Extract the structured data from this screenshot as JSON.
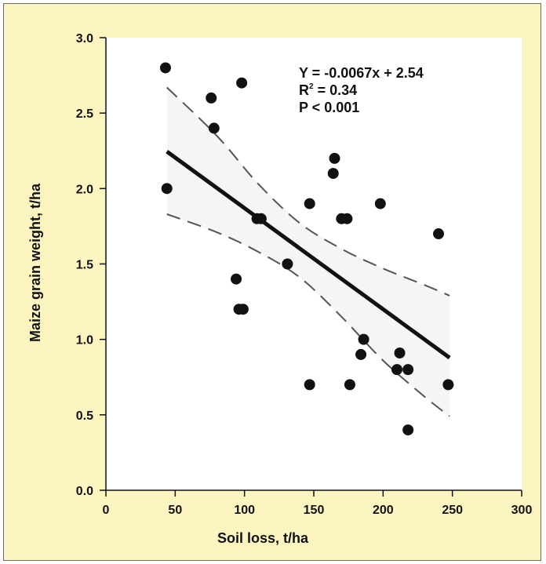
{
  "colors": {
    "background": "#fdf5c0",
    "plot_area": "#ffffff",
    "confidence_band": "#f5f5f5",
    "marker": "#111111",
    "line": "#111111"
  },
  "chart_data": {
    "type": "scatter",
    "title": "",
    "xlabel": "Soil loss, t/ha",
    "ylabel": "Maize grain weight, t/ha",
    "xlim": [
      0,
      300
    ],
    "ylim": [
      0.0,
      3.0
    ],
    "xticks": [
      0,
      50,
      100,
      150,
      200,
      250,
      300
    ],
    "yticks": [
      0.0,
      0.5,
      1.0,
      1.5,
      2.0,
      2.5,
      3.0
    ],
    "xtick_labels": [
      "0",
      "50",
      "100",
      "150",
      "200",
      "250",
      "300"
    ],
    "ytick_labels": [
      "0.0",
      "0.5",
      "1.0",
      "1.5",
      "2.0",
      "2.5",
      "3.0"
    ],
    "grid": false,
    "points": [
      {
        "x": 43,
        "y": 2.8
      },
      {
        "x": 98,
        "y": 2.7
      },
      {
        "x": 76,
        "y": 2.6
      },
      {
        "x": 78,
        "y": 2.4
      },
      {
        "x": 44,
        "y": 2.0
      },
      {
        "x": 165,
        "y": 2.2
      },
      {
        "x": 164,
        "y": 2.1
      },
      {
        "x": 147,
        "y": 1.9
      },
      {
        "x": 198,
        "y": 1.9
      },
      {
        "x": 109,
        "y": 1.8
      },
      {
        "x": 112,
        "y": 1.8
      },
      {
        "x": 170,
        "y": 1.8
      },
      {
        "x": 174,
        "y": 1.8
      },
      {
        "x": 240,
        "y": 1.7
      },
      {
        "x": 131,
        "y": 1.5
      },
      {
        "x": 94,
        "y": 1.4
      },
      {
        "x": 96,
        "y": 1.2
      },
      {
        "x": 99,
        "y": 1.2
      },
      {
        "x": 186,
        "y": 1.0
      },
      {
        "x": 184,
        "y": 0.9
      },
      {
        "x": 212,
        "y": 0.91
      },
      {
        "x": 210,
        "y": 0.8
      },
      {
        "x": 218,
        "y": 0.8
      },
      {
        "x": 147,
        "y": 0.7
      },
      {
        "x": 176,
        "y": 0.7
      },
      {
        "x": 247,
        "y": 0.7
      },
      {
        "x": 218,
        "y": 0.4
      }
    ],
    "regression": {
      "slope": -0.0067,
      "intercept": 2.54,
      "x_range": [
        44,
        248
      ]
    },
    "confidence_bands": {
      "upper": [
        {
          "x": 44,
          "y": 2.67
        },
        {
          "x": 80,
          "y": 2.35
        },
        {
          "x": 110,
          "y": 2.03
        },
        {
          "x": 140,
          "y": 1.77
        },
        {
          "x": 170,
          "y": 1.6
        },
        {
          "x": 200,
          "y": 1.47
        },
        {
          "x": 230,
          "y": 1.36
        },
        {
          "x": 248,
          "y": 1.29
        }
      ],
      "lower": [
        {
          "x": 44,
          "y": 1.83
        },
        {
          "x": 80,
          "y": 1.71
        },
        {
          "x": 110,
          "y": 1.58
        },
        {
          "x": 140,
          "y": 1.41
        },
        {
          "x": 170,
          "y": 1.15
        },
        {
          "x": 200,
          "y": 0.86
        },
        {
          "x": 230,
          "y": 0.62
        },
        {
          "x": 248,
          "y": 0.49
        }
      ]
    },
    "annotation": {
      "equation": "Y = -0.0067x + 2.54",
      "r2_label": "R",
      "r2_sup": "2",
      "r2_value": " = 0.34",
      "p_value": "P < 0.001"
    }
  }
}
